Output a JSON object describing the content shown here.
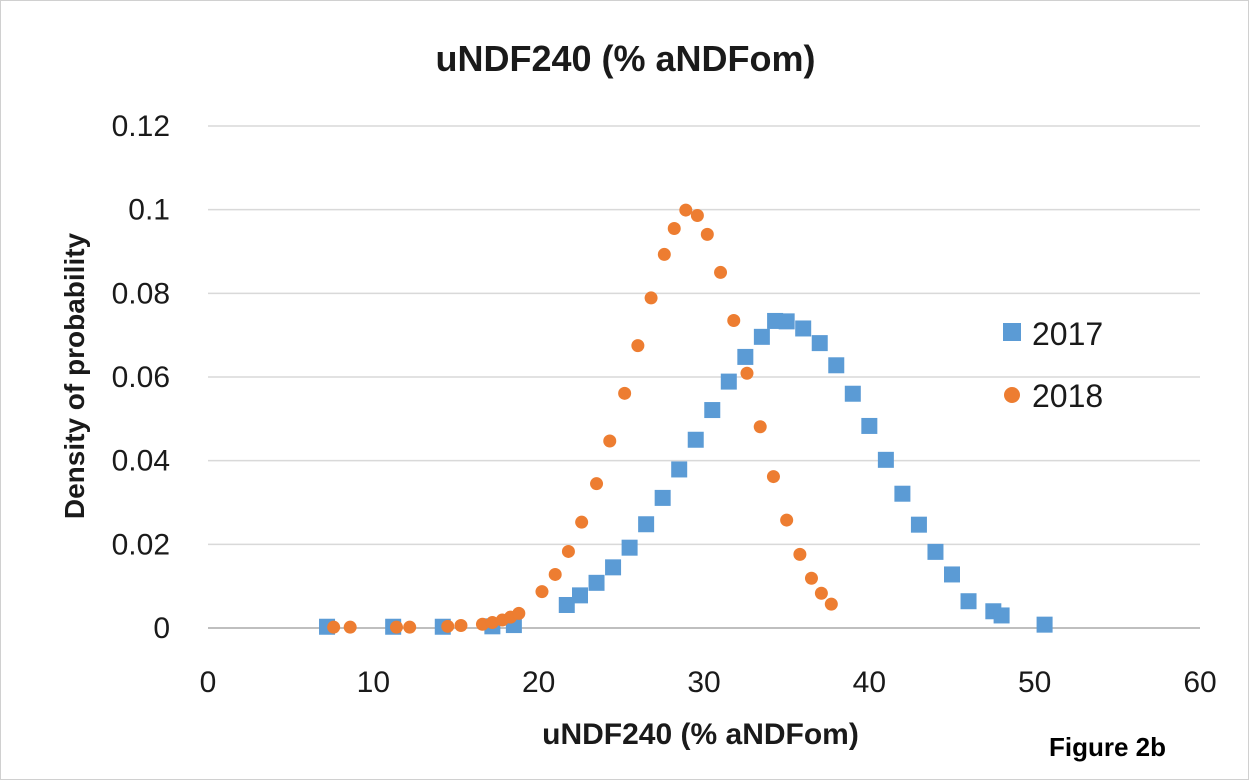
{
  "figure_label": "Figure 2b",
  "chart_data": {
    "type": "scatter",
    "title": "uNDF240 (% aNDFom)",
    "xlabel": "uNDF240 (% aNDFom)",
    "ylabel": "Density of probability",
    "xlim": [
      0,
      60
    ],
    "ylim": [
      0,
      0.12
    ],
    "x_ticks": [
      "0",
      "10",
      "20",
      "30",
      "40",
      "50",
      "60"
    ],
    "y_ticks": [
      "0",
      "0.02",
      "0.04",
      "0.06",
      "0.08",
      "0.1",
      "0.12"
    ],
    "grid": "horizontal",
    "legend_position": "right",
    "series": [
      {
        "name": "2017",
        "color": "#5b9bd5",
        "marker": "square",
        "x": [
          7.2,
          11.2,
          14.2,
          17.2,
          18.5,
          21.7,
          22.5,
          23.5,
          24.5,
          25.5,
          26.5,
          27.5,
          28.5,
          29.5,
          30.5,
          31.5,
          32.5,
          33.5,
          34.3,
          35.0,
          36.0,
          37.0,
          38.0,
          39.0,
          40.0,
          41.0,
          42.0,
          43.0,
          44.0,
          45.0,
          46.0,
          47.5,
          48.0,
          50.6
        ],
        "y": [
          0.0003,
          0.0003,
          0.0003,
          0.0004,
          0.0007,
          0.0055,
          0.0078,
          0.0108,
          0.0145,
          0.0192,
          0.0248,
          0.0311,
          0.0379,
          0.045,
          0.0521,
          0.0589,
          0.0648,
          0.0696,
          0.0734,
          0.0733,
          0.0716,
          0.0681,
          0.0628,
          0.056,
          0.0483,
          0.0402,
          0.0321,
          0.0247,
          0.0182,
          0.0128,
          0.0064,
          0.004,
          0.003,
          0.0008
        ]
      },
      {
        "name": "2018",
        "color": "#ed7d31",
        "marker": "circle",
        "x": [
          7.6,
          8.6,
          11.4,
          12.2,
          14.5,
          15.3,
          16.6,
          17.2,
          17.8,
          18.3,
          18.8,
          20.2,
          21.0,
          21.8,
          22.6,
          23.5,
          24.3,
          25.2,
          26.0,
          26.8,
          27.6,
          28.2,
          28.9,
          29.6,
          30.2,
          31.0,
          31.8,
          32.6,
          33.4,
          34.2,
          35.0,
          35.8,
          36.5,
          37.1,
          37.7
        ],
        "y": [
          0.0002,
          0.0002,
          0.0002,
          0.0002,
          0.0004,
          0.0006,
          0.0009,
          0.0013,
          0.0019,
          0.0026,
          0.0035,
          0.0087,
          0.0128,
          0.0183,
          0.0253,
          0.0345,
          0.0447,
          0.0561,
          0.0675,
          0.0789,
          0.0893,
          0.0955,
          0.0999,
          0.0986,
          0.0941,
          0.085,
          0.0735,
          0.0609,
          0.0481,
          0.0362,
          0.0258,
          0.0176,
          0.0119,
          0.0083,
          0.0057
        ]
      }
    ]
  }
}
